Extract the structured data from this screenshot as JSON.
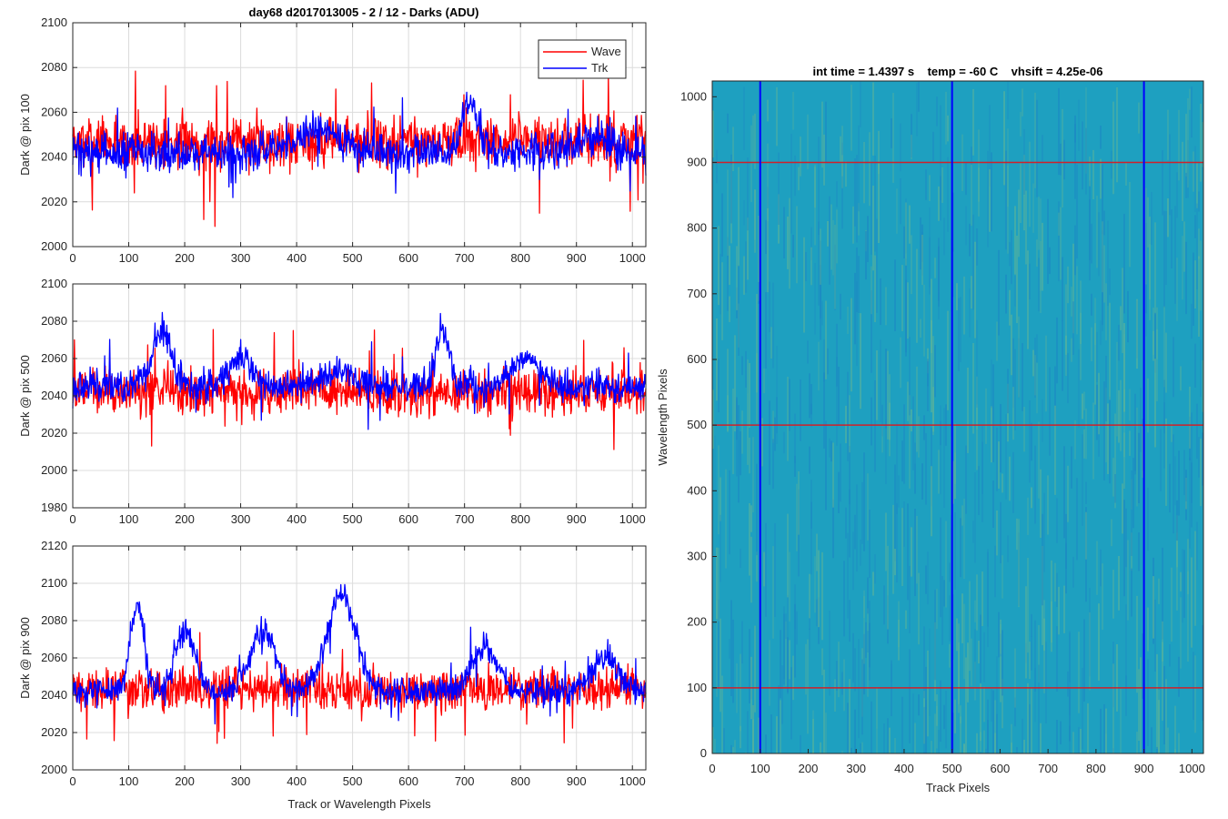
{
  "figure": {
    "title": "day68 d2017013005 - 2 / 12 - Darks (ADU)",
    "left_xlabel": "Track or Wavelength Pixels"
  },
  "legend": {
    "entries": [
      "Wave",
      "Trk"
    ],
    "placement": "top-right"
  },
  "colors": {
    "wave": "#ff0000",
    "trk": "#0000ff",
    "marker_h": "#d0202a",
    "marker_v": "#0000ff",
    "grid": "#dcdcdc"
  },
  "chart_data": [
    {
      "type": "line",
      "ylabel": "Dark @ pix 100",
      "xlim": [
        0,
        1024
      ],
      "ylim": [
        2000,
        2100
      ],
      "xticks": [
        0,
        100,
        200,
        300,
        400,
        500,
        600,
        700,
        800,
        900,
        1000
      ],
      "yticks": [
        2000,
        2020,
        2040,
        2060,
        2080,
        2100
      ],
      "grid": true,
      "series": [
        {
          "name": "Wave",
          "color": "#ff0000",
          "baseline": 2047,
          "noise": 10,
          "bumps": []
        },
        {
          "name": "Trk",
          "color": "#0000ff",
          "baseline": 2042,
          "noise": 7,
          "bumps": [
            {
              "center": 440,
              "height": 10,
              "width": 40
            },
            {
              "center": 710,
              "height": 22,
              "width": 14
            },
            {
              "center": 930,
              "height": 8,
              "width": 25
            }
          ]
        }
      ]
    },
    {
      "type": "line",
      "ylabel": "Dark @ pix 500",
      "xlim": [
        0,
        1024
      ],
      "ylim": [
        1980,
        2100
      ],
      "xticks": [
        0,
        100,
        200,
        300,
        400,
        500,
        600,
        700,
        800,
        900,
        1000
      ],
      "yticks": [
        1980,
        2000,
        2020,
        2040,
        2060,
        2080,
        2100
      ],
      "grid": true,
      "series": [
        {
          "name": "Wave",
          "color": "#ff0000",
          "baseline": 2042,
          "noise": 10,
          "bumps": []
        },
        {
          "name": "Trk",
          "color": "#0000ff",
          "baseline": 2045,
          "noise": 7,
          "bumps": [
            {
              "center": 160,
              "height": 30,
              "width": 18
            },
            {
              "center": 300,
              "height": 15,
              "width": 20
            },
            {
              "center": 475,
              "height": 8,
              "width": 30
            },
            {
              "center": 660,
              "height": 30,
              "width": 12
            },
            {
              "center": 810,
              "height": 15,
              "width": 25
            }
          ]
        }
      ]
    },
    {
      "type": "line",
      "ylabel": "Dark @ pix 900",
      "xlim": [
        0,
        1024
      ],
      "ylim": [
        2000,
        2120
      ],
      "xticks": [
        0,
        100,
        200,
        300,
        400,
        500,
        600,
        700,
        800,
        900,
        1000
      ],
      "yticks": [
        2000,
        2020,
        2040,
        2060,
        2080,
        2100,
        2120
      ],
      "grid": true,
      "series": [
        {
          "name": "Wave",
          "color": "#ff0000",
          "baseline": 2043,
          "noise": 9,
          "bumps": []
        },
        {
          "name": "Trk",
          "color": "#0000ff",
          "baseline": 2042,
          "noise": 6,
          "bumps": [
            {
              "center": 115,
              "height": 45,
              "width": 12
            },
            {
              "center": 200,
              "height": 32,
              "width": 18
            },
            {
              "center": 340,
              "height": 32,
              "width": 22
            },
            {
              "center": 480,
              "height": 52,
              "width": 25
            },
            {
              "center": 735,
              "height": 25,
              "width": 22
            },
            {
              "center": 950,
              "height": 20,
              "width": 20
            }
          ]
        }
      ]
    },
    {
      "type": "heatmap",
      "title": "int time = 1.4397 s    temp = -60 C    vhsift = 4.25e-06",
      "xlabel": "Track Pixels",
      "ylabel": "Wavelength Pixels",
      "xlim": [
        0,
        1024
      ],
      "ylim": [
        0,
        1024
      ],
      "xticks": [
        0,
        100,
        200,
        300,
        400,
        500,
        600,
        700,
        800,
        900,
        1000
      ],
      "yticks": [
        0,
        100,
        200,
        300,
        400,
        500,
        600,
        700,
        800,
        900,
        1000
      ],
      "colormap": {
        "low": "#1a6ec8",
        "mid": "#1ea0c0",
        "high": "#9cc870"
      },
      "marker_rows": [
        100,
        500,
        900
      ],
      "marker_cols": [
        100,
        500,
        900
      ]
    }
  ]
}
